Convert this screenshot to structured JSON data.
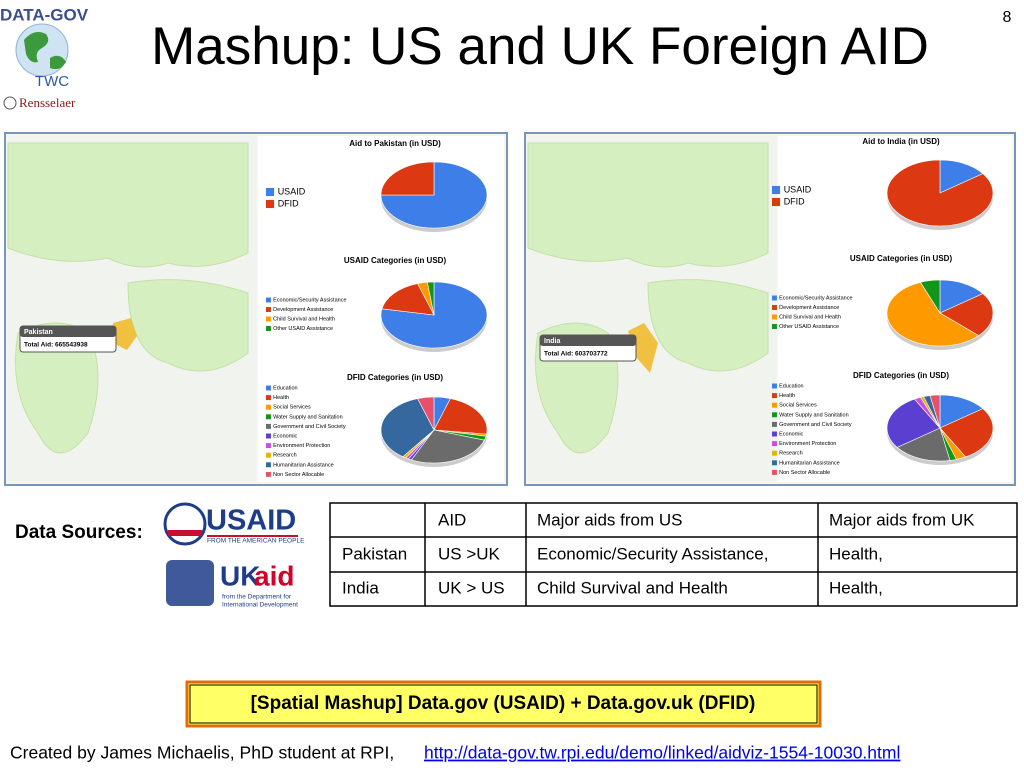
{
  "logo": {
    "name": "DATA-GOV",
    "group": "TWC",
    "institution": "Rensselaer"
  },
  "slide_number": "8",
  "title": "Mashup: US and UK Foreign AID",
  "panels": [
    {
      "country": "Pakistan",
      "total": "Total Aid: 665543938"
    },
    {
      "country": "India",
      "total": "Total Aid: 603703772"
    }
  ],
  "chart_data": [
    {
      "type": "pie",
      "title": "Aid to Pakistan (in USD)",
      "categories": [
        "USAID",
        "DFID"
      ],
      "values": [
        75,
        25
      ],
      "colors": [
        "#3d7ee8",
        "#dc3912"
      ]
    },
    {
      "type": "pie",
      "title": "USAID Categories (in USD)",
      "categories": [
        "Economic/Security Assistance",
        "Development Assistance",
        "Child Survival and Health",
        "Other USAID Assistance"
      ],
      "values": [
        78,
        17,
        3,
        2
      ],
      "colors": [
        "#3d7ee8",
        "#dc3912",
        "#ff9900",
        "#109618"
      ]
    },
    {
      "type": "pie",
      "title": "DFID Categories (in USD)",
      "categories": [
        "Education",
        "Health",
        "Social Services",
        "Water Supply and Sanitation",
        "Government and Civil Society",
        "Economic",
        "Environment Protection",
        "Research",
        "Humanitarian Assistance",
        "Non Sector Allocable"
      ],
      "values": [
        5,
        22,
        1,
        2,
        27,
        1,
        1,
        1,
        35,
        5
      ],
      "colors": [
        "#3d7ee8",
        "#dc3912",
        "#ff9900",
        "#109618",
        "#6b6b6b",
        "#5a3fd0",
        "#c94fe0",
        "#e5b400",
        "#35689e",
        "#e8506a"
      ]
    },
    {
      "type": "pie",
      "title": "Aid to India (in USD)",
      "categories": [
        "USAID",
        "DFID"
      ],
      "values": [
        15,
        85
      ],
      "colors": [
        "#3d7ee8",
        "#dc3912"
      ]
    },
    {
      "type": "pie",
      "title": "USAID Categories (in USD)",
      "categories": [
        "Economic/Security Assistance",
        "Development Assistance",
        "Child Survival and Health",
        "Other USAID Assistance"
      ],
      "values": [
        15,
        22,
        57,
        6
      ],
      "colors": [
        "#3d7ee8",
        "#dc3912",
        "#ff9900",
        "#109618"
      ]
    },
    {
      "type": "pie",
      "title": "DFID Categories (in USD)",
      "categories": [
        "Education",
        "Health",
        "Social Services",
        "Water Supply and Sanitation",
        "Government and Civil Society",
        "Economic",
        "Environment Protection",
        "Research",
        "Humanitarian Assistance",
        "Non Sector Allocable"
      ],
      "values": [
        15,
        27,
        3,
        2,
        18,
        27,
        2,
        1,
        2,
        3
      ],
      "colors": [
        "#3d7ee8",
        "#dc3912",
        "#ff9900",
        "#109618",
        "#6b6b6b",
        "#5a3fd0",
        "#c94fe0",
        "#e5b400",
        "#35689e",
        "#e8506a"
      ]
    }
  ],
  "sources": {
    "label": "Data Sources:",
    "usaid": "USAID",
    "usaid_tagline": "FROM THE AMERICAN PEOPLE",
    "ukaid_uk": "UK",
    "ukaid_aid": "aid",
    "ukaid_tagline_1": "from the Department for",
    "ukaid_tagline_2": "International Development"
  },
  "table": {
    "header": [
      "AID",
      "Major aids from US",
      "Major aids from UK"
    ],
    "rows": [
      [
        "Pakistan",
        "US >UK",
        "Economic/Security Assistance,",
        "Health,"
      ],
      [
        "India",
        "UK > US",
        "Child Survival and Health",
        "Health,"
      ]
    ]
  },
  "banner": "[Spatial Mashup] Data.gov (USAID) + Data.gov.uk (DFID)",
  "footer": {
    "text": "Created by James Michaelis, PhD student at RPI,",
    "link": "http://data-gov.tw.rpi.edu/demo/linked/aidviz-1554-10030.html"
  }
}
